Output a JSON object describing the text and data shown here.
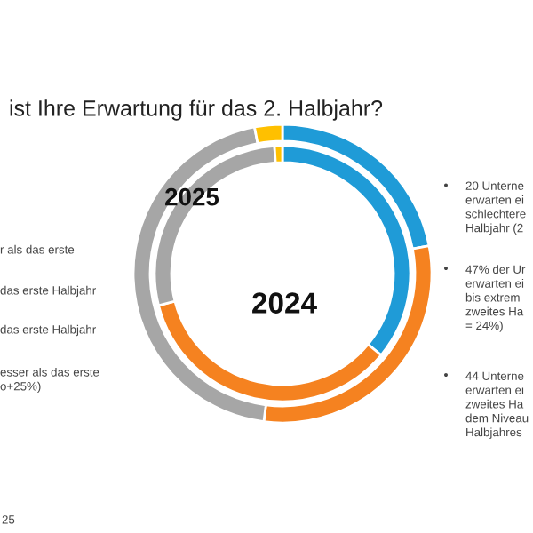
{
  "chart_data": {
    "type": "donut",
    "title": "ist Ihre Erwartung für das 2. Halbjahr?",
    "categories": [
      null,
      null,
      null,
      null
    ],
    "series": [
      {
        "values": [
          22,
          30,
          45,
          3
        ],
        "colors": [
          "#1f9bd7",
          "#f58220",
          "#a6a6a6",
          "#ffc000"
        ]
      },
      {
        "values": [
          36,
          35,
          28,
          1
        ],
        "colors": [
          "#1f9bd7",
          "#f58220",
          "#a6a6a6",
          "#ffc000"
        ]
      }
    ],
    "annotations": [
      "2025",
      "2024",
      "r als das erste",
      "das erste Halbjahr",
      "das erste Halbjahr",
      "esser als das erste\no+25%)",
      "20 Unterne\nerwarten ei\nschlechtere\nHalbjahr (2",
      "47% der Ur\nerwarten ei\nbis extrem\nzweites Ha\n= 24%)",
      "44 Unterne\nerwarten ei\nzweites Ha\ndem Niveau\nHalbjahres",
      "25"
    ]
  }
}
